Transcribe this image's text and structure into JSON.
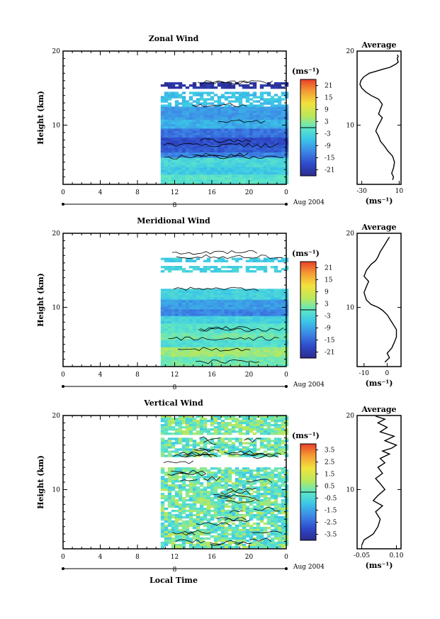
{
  "figure": {
    "xlabel_bottom": "Local Time",
    "date_label": "Aug 2004",
    "day_label": "8"
  },
  "chart_data": [
    {
      "type": "heatmap",
      "title": "Zonal Wind",
      "ylabel": "Height (km)",
      "xlim": [
        0,
        24
      ],
      "ylim": [
        2,
        20
      ],
      "x_ticks": [
        "0",
        "4",
        "8",
        "12",
        "16",
        "20",
        "0"
      ],
      "y_ticks": [
        "20",
        "10"
      ],
      "data_start_hour": 10.5,
      "colorbar": {
        "unit": "(ms⁻¹)",
        "ticks": [
          "21",
          "15",
          "9",
          "3",
          "-3",
          "-9",
          "-15",
          "-21"
        ],
        "range": [
          -24,
          24
        ]
      },
      "layers": [
        {
          "y0": 2.3,
          "y1": 3.5,
          "value": -1
        },
        {
          "y0": 3.5,
          "y1": 4.5,
          "value": -5
        },
        {
          "y0": 4.5,
          "y1": 5.8,
          "value": -3
        },
        {
          "y0": 5.8,
          "y1": 6.5,
          "value": -12
        },
        {
          "y0": 6.5,
          "y1": 7.5,
          "value": -16
        },
        {
          "y0": 7.5,
          "y1": 8.5,
          "value": -18
        },
        {
          "y0": 8.5,
          "y1": 9.8,
          "value": -14
        },
        {
          "y0": 9.8,
          "y1": 11.0,
          "value": -8
        },
        {
          "y0": 11.0,
          "y1": 12.5,
          "value": -10
        },
        {
          "y0": 12.5,
          "y1": 14.5,
          "value": -6
        },
        {
          "y0": 15.0,
          "y1": 15.8,
          "value": -22
        }
      ],
      "average": {
        "title": "Average",
        "xlabel": "(ms⁻¹)",
        "x_ticks": [
          "-30",
          "10"
        ],
        "y_ticks": [
          "20",
          "10"
        ],
        "xlim": [
          -35,
          12
        ],
        "ylim": [
          2,
          20
        ],
        "x": [
          3,
          4,
          2,
          4,
          5,
          3,
          -2,
          -6,
          -10,
          -12,
          -15,
          -13,
          -10,
          -8,
          -12,
          -10,
          -8,
          -12,
          -20,
          -26,
          -30,
          -32,
          -31,
          -28,
          -22,
          -14,
          -6,
          0,
          3,
          6,
          9,
          8,
          9,
          8
        ],
        "y": [
          2.6,
          3.0,
          3.5,
          4.2,
          5.0,
          5.8,
          6.5,
          7.2,
          7.8,
          8.5,
          9.2,
          9.8,
          10.5,
          11.0,
          11.5,
          12.2,
          12.8,
          13.5,
          14.0,
          14.5,
          15.0,
          15.5,
          16.0,
          16.5,
          17.0,
          17.3,
          17.6,
          17.8,
          18.0,
          18.2,
          18.5,
          19.0,
          19.3,
          19.5
        ]
      }
    },
    {
      "type": "heatmap",
      "title": "Meridional Wind",
      "ylabel": "Height (km)",
      "xlim": [
        0,
        24
      ],
      "ylim": [
        2,
        20
      ],
      "x_ticks": [
        "0",
        "4",
        "8",
        "12",
        "16",
        "20",
        "0"
      ],
      "y_ticks": [
        "20",
        "10"
      ],
      "data_start_hour": 10.5,
      "colorbar": {
        "unit": "(ms⁻¹)",
        "ticks": [
          "21",
          "15",
          "9",
          "3",
          "-3",
          "-9",
          "-15",
          "-21"
        ],
        "range": [
          -24,
          24
        ]
      },
      "layers": [
        {
          "y0": 2.3,
          "y1": 3.5,
          "value": 1
        },
        {
          "y0": 3.5,
          "y1": 4.8,
          "value": 4
        },
        {
          "y0": 4.8,
          "y1": 5.8,
          "value": -2
        },
        {
          "y0": 5.8,
          "y1": 6.8,
          "value": 1
        },
        {
          "y0": 6.8,
          "y1": 8.0,
          "value": -1
        },
        {
          "y0": 8.0,
          "y1": 9.0,
          "value": -4
        },
        {
          "y0": 9.0,
          "y1": 10.0,
          "value": -12
        },
        {
          "y0": 10.0,
          "y1": 11.2,
          "value": -10
        },
        {
          "y0": 11.2,
          "y1": 12.5,
          "value": -4
        },
        {
          "y0": 15.0,
          "y1": 15.6,
          "value": -4
        },
        {
          "y0": 16.3,
          "y1": 16.7,
          "value": -5
        }
      ],
      "average": {
        "title": "Average",
        "xlabel": "(ms⁻¹)",
        "x_ticks": [
          "-10",
          "0"
        ],
        "y_ticks": [
          "20",
          "10"
        ],
        "xlim": [
          -13,
          6
        ],
        "ylim": [
          2,
          20
        ],
        "x": [
          -1,
          1,
          0,
          2,
          3,
          4,
          4,
          2,
          0,
          -2,
          -4,
          -7,
          -9,
          -10,
          -9,
          -8,
          -10,
          -9,
          -7,
          -5,
          -4,
          -3,
          -2,
          -1,
          0,
          1
        ],
        "y": [
          2.6,
          3.2,
          3.8,
          4.5,
          5.2,
          6.0,
          7.0,
          8.0,
          9.0,
          9.6,
          10.0,
          10.4,
          11.0,
          12.0,
          12.8,
          13.5,
          14.2,
          15.0,
          15.8,
          16.3,
          16.8,
          17.5,
          18.0,
          18.5,
          19.0,
          19.5
        ]
      }
    },
    {
      "type": "heatmap",
      "title": "Vertical Wind",
      "ylabel": "Height (km)",
      "xlim": [
        0,
        24
      ],
      "ylim": [
        2,
        20
      ],
      "x_ticks": [
        "0",
        "4",
        "8",
        "12",
        "16",
        "20",
        "0"
      ],
      "y_ticks": [
        "20",
        "10"
      ],
      "data_start_hour": 10.5,
      "colorbar": {
        "unit": "(ms⁻¹)",
        "ticks": [
          "3.5",
          "2.5",
          "1.5",
          "0.5",
          "-0.5",
          "-1.5",
          "-2.5",
          "-3.5"
        ],
        "range": [
          -4,
          4
        ]
      },
      "layers": [
        {
          "y0": 2.3,
          "y1": 9.0,
          "value": 0.1
        },
        {
          "y0": 9.0,
          "y1": 13.0,
          "value": 0.0
        },
        {
          "y0": 14.5,
          "y1": 17.0,
          "value": 0.1
        },
        {
          "y0": 17.5,
          "y1": 20.0,
          "value": 0.2
        }
      ],
      "average": {
        "title": "Average",
        "xlabel": "(ms⁻¹)",
        "x_ticks": [
          "-0.05",
          "0.10"
        ],
        "y_ticks": [
          "20",
          "10"
        ],
        "xlim": [
          -0.07,
          0.12
        ],
        "ylim": [
          2,
          20
        ],
        "x": [
          -0.05,
          -0.04,
          0.0,
          0.02,
          0.03,
          0.01,
          0.04,
          0.0,
          0.02,
          0.05,
          0.03,
          0.01,
          0.04,
          0.02,
          0.05,
          0.03,
          0.07,
          0.04,
          0.08,
          0.1,
          0.05,
          0.09,
          0.03,
          0.06,
          0.02,
          0.05,
          0.01
        ],
        "y": [
          2.5,
          3.2,
          4.0,
          5.0,
          6.0,
          7.0,
          7.8,
          8.5,
          9.2,
          10.0,
          10.8,
          11.5,
          12.2,
          13.0,
          13.6,
          14.2,
          14.8,
          15.2,
          15.6,
          16.0,
          16.6,
          17.2,
          17.8,
          18.4,
          19.0,
          19.5,
          19.9
        ]
      }
    }
  ]
}
